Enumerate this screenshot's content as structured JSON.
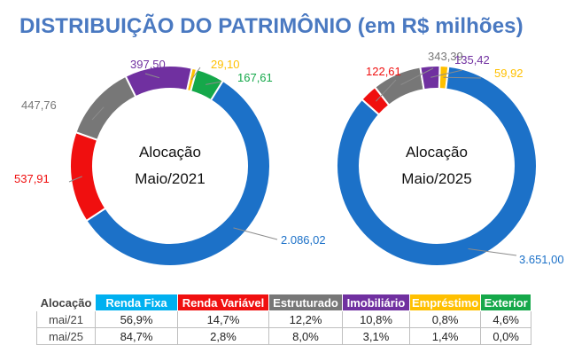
{
  "title": "DISTRIBUIÇÃO DO PATRIMÔNIO (em R$ milhões)",
  "colors": {
    "renda_fixa": "#1c71c8",
    "renda_variavel": "#f00f0f",
    "estruturado": "#777777",
    "imobiliario": "#7030a0",
    "emprestimo": "#ffc000",
    "exterior": "#15a84a",
    "title": "#4a79c1"
  },
  "chart_data": [
    {
      "type": "pie",
      "style": "donut",
      "center_label": [
        "Alocação",
        "Maio/2021"
      ],
      "categories": [
        "Renda Fixa",
        "Renda Variável",
        "Estruturado",
        "Imobiliário",
        "Empréstimo",
        "Exterior"
      ],
      "values": [
        2086.02,
        537.91,
        447.76,
        397.5,
        29.1,
        167.61
      ],
      "labels": [
        "2.086,02",
        "537,91",
        "447,76",
        "397,50",
        "29,10",
        "167,61"
      ]
    },
    {
      "type": "pie",
      "style": "donut",
      "center_label": [
        "Alocação",
        "Maio/2025"
      ],
      "categories": [
        "Renda Fixa",
        "Renda Variável",
        "Estruturado",
        "Imobiliário",
        "Empréstimo",
        "Exterior"
      ],
      "values": [
        3651.0,
        122.61,
        343.39,
        135.42,
        59.92,
        0
      ],
      "labels": [
        "3.651,00",
        "122,61",
        "343,39",
        "135,42",
        "59,92",
        ""
      ]
    }
  ],
  "table": {
    "header_label": "Alocação",
    "columns": [
      "Renda Fixa",
      "Renda Variável",
      "Estruturado",
      "Imobiliário",
      "Empréstimo",
      "Exterior"
    ],
    "rows": [
      {
        "label": "mai/21",
        "values": [
          "56,9%",
          "14,7%",
          "12,2%",
          "10,8%",
          "0,8%",
          "4,6%"
        ]
      },
      {
        "label": "mai/25",
        "values": [
          "84,7%",
          "2,8%",
          "8,0%",
          "3,1%",
          "1,4%",
          "0,0%"
        ]
      }
    ]
  }
}
